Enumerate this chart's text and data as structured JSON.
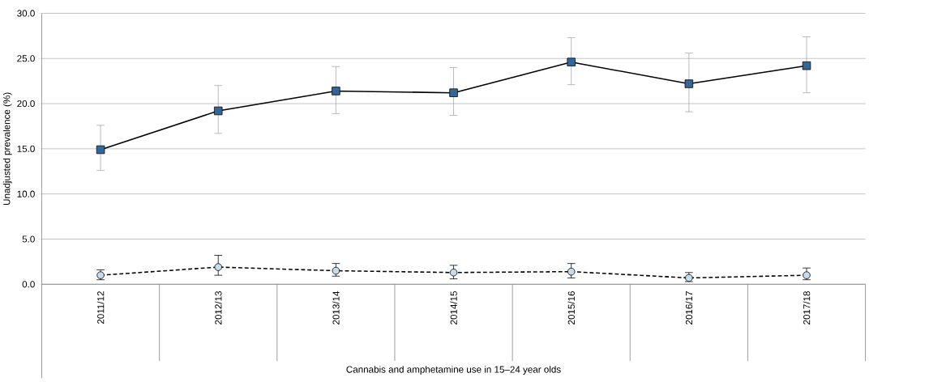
{
  "chart_data": {
    "type": "line",
    "xlabel": "Cannabis and amphetamine use in 15–24 year olds",
    "ylabel": "Unadjusted prevalence (%)",
    "categories": [
      "2011/12",
      "2012/13",
      "2013/14",
      "2014/15",
      "2015/16",
      "2016/17",
      "2017/18"
    ],
    "ylim": [
      0,
      30
    ],
    "yticks": [
      {
        "value": 0,
        "label": "0.0"
      },
      {
        "value": 5,
        "label": "5.0"
      },
      {
        "value": 10,
        "label": "10.0"
      },
      {
        "value": 15,
        "label": "15.0"
      },
      {
        "value": 20,
        "label": "20.0"
      },
      {
        "value": 25,
        "label": "25.0"
      },
      {
        "value": 30,
        "label": "30.0"
      }
    ],
    "grid": "y",
    "series": [
      {
        "color": "#336699",
        "marker": "square",
        "line_style": "solid",
        "values": [
          14.9,
          19.2,
          21.4,
          21.2,
          24.6,
          22.2,
          24.2
        ],
        "errors": [
          [
            12.6,
            17.6
          ],
          [
            16.7,
            22.0
          ],
          [
            18.9,
            24.1
          ],
          [
            18.7,
            24.0
          ],
          [
            22.1,
            27.3
          ],
          [
            19.1,
            25.6
          ],
          [
            21.2,
            27.4
          ]
        ]
      },
      {
        "color": "#c5dcec",
        "marker": "circle",
        "line_style": "dashed",
        "values": [
          1.0,
          1.9,
          1.5,
          1.3,
          1.4,
          0.7,
          1.0
        ],
        "errors": [
          [
            0.5,
            1.6
          ],
          [
            1.0,
            3.2
          ],
          [
            0.9,
            2.3
          ],
          [
            0.6,
            2.1
          ],
          [
            0.7,
            2.3
          ],
          [
            0.3,
            1.3
          ],
          [
            0.5,
            1.8
          ]
        ]
      }
    ]
  }
}
